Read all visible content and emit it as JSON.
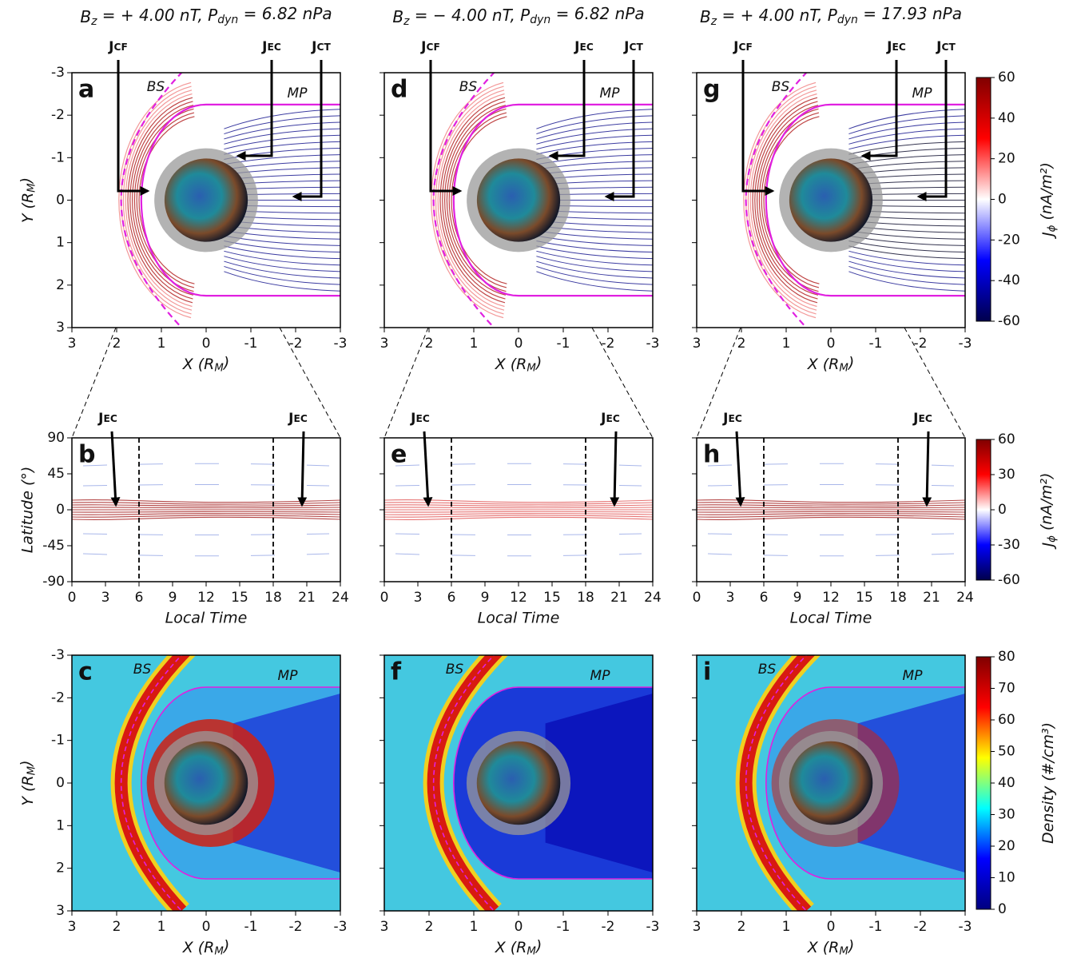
{
  "chart_data": [
    {
      "type": "field",
      "panel": "a",
      "title": [
        "B",
        "z",
        " = + 4.00 nT,  P",
        "dyn",
        " = 6.82 nPa"
      ],
      "xlabel": [
        "X (R",
        "M",
        ")"
      ],
      "ylabel": [
        "Y (R",
        "M",
        ")"
      ],
      "xlim": [
        3,
        -3
      ],
      "ylim": [
        3,
        -3
      ],
      "xticks": [
        3,
        2,
        1,
        0,
        -1,
        -2,
        -3
      ],
      "yticks": [
        -3,
        -2,
        -1,
        0,
        1,
        2,
        3
      ],
      "annotations": [
        {
          "text": [
            "J",
            "CF"
          ],
          "color": "#8b1010"
        },
        {
          "text": [
            "J",
            "EC"
          ],
          "color": "#e8141a"
        },
        {
          "text": [
            "J",
            "CT"
          ],
          "color": "#10108b"
        },
        {
          "text": [
            "BS"
          ],
          "color": "#e020e0"
        },
        {
          "text": [
            "MP"
          ],
          "color": "#e020e0"
        }
      ]
    },
    {
      "type": "field",
      "panel": "d",
      "title": [
        "B",
        "z",
        " = − 4.00 nT,  P",
        "dyn",
        " = 6.82 nPa"
      ],
      "xlabel": [
        "X (R",
        "M",
        ")"
      ],
      "xlim": [
        3,
        -3
      ],
      "ylim": [
        3,
        -3
      ],
      "xticks": [
        3,
        2,
        1,
        0,
        -1,
        -2,
        -3
      ],
      "yticks": [
        -3,
        -2,
        -1,
        0,
        1,
        2,
        3
      ],
      "ytick_labels": false,
      "annotations": [
        {
          "text": [
            "J",
            "CF"
          ],
          "color": "#8b1010"
        },
        {
          "text": [
            "J",
            "EC"
          ],
          "color": "#e8141a"
        },
        {
          "text": [
            "J",
            "CT"
          ],
          "color": "#10108b"
        },
        {
          "text": [
            "BS"
          ],
          "color": "#e020e0"
        },
        {
          "text": [
            "MP"
          ],
          "color": "#e020e0"
        }
      ]
    },
    {
      "type": "field",
      "panel": "g",
      "title": [
        "B",
        "z",
        " = + 4.00 nT,  P",
        "dyn",
        " = 17.93 nPa"
      ],
      "xlabel": [
        "X (R",
        "M",
        ")"
      ],
      "xlim": [
        3,
        -3
      ],
      "ylim": [
        3,
        -3
      ],
      "xticks": [
        3,
        2,
        1,
        0,
        -1,
        -2,
        -3
      ],
      "yticks": [
        -3,
        -2,
        -1,
        0,
        1,
        2,
        3
      ],
      "ytick_labels": false,
      "annotations": [
        {
          "text": [
            "J",
            "CF"
          ],
          "color": "#8b1010"
        },
        {
          "text": [
            "J",
            "EC"
          ],
          "color": "#e8141a"
        },
        {
          "text": [
            "J",
            "CT"
          ],
          "color": "#10108b"
        },
        {
          "text": [
            "BS"
          ],
          "color": "#e020e0"
        },
        {
          "text": [
            "MP"
          ],
          "color": "#e020e0"
        }
      ]
    },
    {
      "type": "map",
      "panel": "b",
      "xlabel": "Local Time",
      "ylabel": "Latitude (°)",
      "xlim": [
        0,
        24
      ],
      "ylim": [
        -90,
        90
      ],
      "xticks": [
        0,
        3,
        6,
        9,
        12,
        15,
        18,
        21,
        24
      ],
      "yticks": [
        90,
        45,
        0,
        -45,
        -90
      ],
      "vlines": [
        6,
        18
      ],
      "annotations": [
        {
          "text": [
            "J",
            "EC"
          ],
          "color": "#e8141a"
        },
        {
          "text": [
            "J",
            "EC"
          ],
          "color": "#e8141a"
        }
      ]
    },
    {
      "type": "map",
      "panel": "e",
      "xlabel": "Local Time",
      "xlim": [
        0,
        24
      ],
      "ylim": [
        -90,
        90
      ],
      "xticks": [
        0,
        3,
        6,
        9,
        12,
        15,
        18,
        21,
        24
      ],
      "yticks": [
        90,
        45,
        0,
        -45,
        -90
      ],
      "ytick_labels": false,
      "vlines": [
        6,
        18
      ],
      "annotations": [
        {
          "text": [
            "J",
            "EC"
          ],
          "color": "#e8141a"
        },
        {
          "text": [
            "J",
            "EC"
          ],
          "color": "#e8141a"
        }
      ]
    },
    {
      "type": "map",
      "panel": "h",
      "xlabel": "Local Time",
      "xlim": [
        0,
        24
      ],
      "ylim": [
        -90,
        90
      ],
      "xticks": [
        0,
        3,
        6,
        9,
        12,
        15,
        18,
        21,
        24
      ],
      "yticks": [
        90,
        45,
        0,
        -45,
        -90
      ],
      "ytick_labels": false,
      "vlines": [
        6,
        18
      ],
      "annotations": [
        {
          "text": [
            "J",
            "EC"
          ],
          "color": "#e8141a"
        },
        {
          "text": [
            "J",
            "EC"
          ],
          "color": "#e8141a"
        }
      ]
    },
    {
      "type": "density",
      "panel": "c",
      "xlabel": [
        "X (R",
        "M",
        ")"
      ],
      "ylabel": [
        "Y (R",
        "M",
        ")"
      ],
      "xlim": [
        3,
        -3
      ],
      "ylim": [
        3,
        -3
      ],
      "xticks": [
        3,
        2,
        1,
        0,
        -1,
        -2,
        -3
      ],
      "yticks": [
        -3,
        -2,
        -1,
        0,
        1,
        2,
        3
      ],
      "annotations": [
        {
          "text": [
            "BS"
          ],
          "color": "#e020e0"
        },
        {
          "text": [
            "MP"
          ],
          "color": "#e020e0"
        }
      ]
    },
    {
      "type": "density",
      "panel": "f",
      "xlabel": [
        "X (R",
        "M",
        ")"
      ],
      "xlim": [
        3,
        -3
      ],
      "ylim": [
        3,
        -3
      ],
      "xticks": [
        3,
        2,
        1,
        0,
        -1,
        -2,
        -3
      ],
      "yticks": [
        -3,
        -2,
        -1,
        0,
        1,
        2,
        3
      ],
      "ytick_labels": false,
      "annotations": [
        {
          "text": [
            "BS"
          ],
          "color": "#e020e0"
        },
        {
          "text": [
            "MP"
          ],
          "color": "#e020e0"
        }
      ]
    },
    {
      "type": "density",
      "panel": "i",
      "xlabel": [
        "X (R",
        "M",
        ")"
      ],
      "xlim": [
        3,
        -3
      ],
      "ylim": [
        3,
        -3
      ],
      "xticks": [
        3,
        2,
        1,
        0,
        -1,
        -2,
        -3
      ],
      "yticks": [
        -3,
        -2,
        -1,
        0,
        1,
        2,
        3
      ],
      "ytick_labels": false,
      "annotations": [
        {
          "text": [
            "BS"
          ],
          "color": "#e020e0"
        },
        {
          "text": [
            "MP"
          ],
          "color": "#e020e0"
        }
      ]
    },
    {
      "type": "colorbar",
      "label": [
        "J",
        "ϕ",
        " (nA/m²)"
      ],
      "ylim": [
        -60,
        60
      ],
      "yticks": [
        60,
        40,
        20,
        0,
        -20,
        -40,
        -60
      ],
      "colors": [
        "#00004c",
        "#0000ff",
        "#ffffff",
        "#ff0000",
        "#800000"
      ]
    },
    {
      "type": "colorbar",
      "label": [
        "J",
        "ϕ",
        " (nA/m²)"
      ],
      "ylim": [
        -60,
        60
      ],
      "yticks": [
        60,
        30,
        0,
        -30,
        -60
      ],
      "colors": [
        "#00004c",
        "#0000ff",
        "#ffffff",
        "#ff0000",
        "#800000"
      ]
    },
    {
      "type": "colorbar",
      "label": [
        "Density (#/cm³)"
      ],
      "ylim": [
        0,
        80
      ],
      "yticks": [
        0,
        10,
        20,
        30,
        40,
        50,
        60,
        70,
        80
      ],
      "colors": [
        "#000080",
        "#0000ff",
        "#00ffff",
        "#ffff00",
        "#ff0000",
        "#800000"
      ]
    }
  ]
}
